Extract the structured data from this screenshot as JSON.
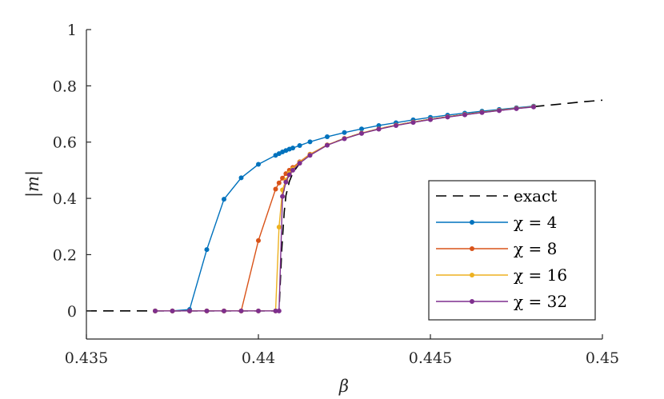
{
  "chart_data": {
    "type": "line",
    "xlabel": "β",
    "ylabel": "|m|",
    "xlim": [
      0.435,
      0.45
    ],
    "ylim": [
      -0.1,
      1.0
    ],
    "xticks": [
      0.435,
      0.44,
      0.445,
      0.45
    ],
    "xtick_labels": [
      "0.435",
      "0.44",
      "0.445",
      "0.45"
    ],
    "yticks": [
      0,
      0.2,
      0.4,
      0.6,
      0.8,
      1
    ],
    "ytick_labels": [
      "0",
      "0.2",
      "0.4",
      "0.6",
      "0.8",
      "1"
    ],
    "grid": false,
    "legend_position": "bottom-right",
    "series": [
      {
        "name": "exact",
        "legend_label": "exact",
        "color": "#000000",
        "style": "dashed",
        "markers": false,
        "x": [
          0.435,
          0.4406,
          0.44068,
          0.44075,
          0.4408,
          0.4409,
          0.441,
          0.4412,
          0.4415,
          0.442,
          0.4425,
          0.443,
          0.4435,
          0.444,
          0.4445,
          0.445,
          0.4455,
          0.446,
          0.4465,
          0.447,
          0.4475,
          0.448,
          0.4485,
          0.449,
          0.4495,
          0.45
        ],
        "y": [
          0,
          0,
          0.22,
          0.35,
          0.41,
          0.46,
          0.49,
          0.525,
          0.555,
          0.59,
          0.613,
          0.632,
          0.647,
          0.66,
          0.671,
          0.681,
          0.69,
          0.698,
          0.706,
          0.713,
          0.72,
          0.726,
          0.732,
          0.738,
          0.744,
          0.749
        ]
      },
      {
        "name": "χ = 4",
        "legend_label": "χ = 4",
        "color": "#0072BD",
        "style": "solid",
        "markers": true,
        "x": [
          0.437,
          0.4375,
          0.438,
          0.4385,
          0.439,
          0.4395,
          0.44,
          0.4405,
          0.4406,
          0.4407,
          0.4408,
          0.4409,
          0.441,
          0.4412,
          0.4415,
          0.442,
          0.4425,
          0.443,
          0.4435,
          0.444,
          0.4445,
          0.445,
          0.4455,
          0.446,
          0.4465,
          0.447,
          0.4475,
          0.448
        ],
        "y": [
          0,
          0,
          0.005,
          0.218,
          0.397,
          0.473,
          0.521,
          0.553,
          0.559,
          0.565,
          0.57,
          0.575,
          0.579,
          0.588,
          0.601,
          0.619,
          0.634,
          0.647,
          0.659,
          0.669,
          0.679,
          0.688,
          0.696,
          0.703,
          0.71,
          0.716,
          0.722,
          0.728
        ]
      },
      {
        "name": "χ = 8",
        "legend_label": "χ = 8",
        "color": "#D95319",
        "style": "solid",
        "markers": true,
        "x": [
          0.437,
          0.4375,
          0.438,
          0.4385,
          0.439,
          0.4395,
          0.44,
          0.4405,
          0.4406,
          0.4407,
          0.4408,
          0.4409,
          0.441,
          0.4412,
          0.4415,
          0.442,
          0.4425,
          0.443,
          0.4435,
          0.444,
          0.4445,
          0.445,
          0.4455,
          0.446,
          0.4465,
          0.447,
          0.4475,
          0.448
        ],
        "y": [
          0,
          0,
          0,
          0,
          0,
          0,
          0.25,
          0.433,
          0.455,
          0.472,
          0.488,
          0.5,
          0.51,
          0.53,
          0.557,
          0.59,
          0.613,
          0.632,
          0.647,
          0.66,
          0.671,
          0.681,
          0.69,
          0.698,
          0.706,
          0.713,
          0.72,
          0.726
        ]
      },
      {
        "name": "χ = 16",
        "legend_label": "χ = 16",
        "color": "#EDB120",
        "style": "solid",
        "markers": true,
        "x": [
          0.437,
          0.4375,
          0.438,
          0.4385,
          0.439,
          0.4395,
          0.44,
          0.4405,
          0.4406,
          0.4407,
          0.4408,
          0.4409,
          0.441,
          0.4412,
          0.4415,
          0.442,
          0.4425,
          0.443,
          0.4435,
          0.444,
          0.4445,
          0.445,
          0.4455,
          0.446,
          0.4465,
          0.447,
          0.4475,
          0.448
        ],
        "y": [
          0,
          0,
          0,
          0,
          0,
          0,
          0,
          0,
          0.298,
          0.43,
          0.465,
          0.49,
          0.505,
          0.528,
          0.556,
          0.59,
          0.613,
          0.632,
          0.647,
          0.66,
          0.671,
          0.681,
          0.69,
          0.698,
          0.706,
          0.713,
          0.72,
          0.726
        ]
      },
      {
        "name": "χ = 32",
        "legend_label": "χ = 32",
        "color": "#7E2F8E",
        "style": "solid",
        "markers": true,
        "x": [
          0.437,
          0.4375,
          0.438,
          0.4385,
          0.439,
          0.4395,
          0.44,
          0.4405,
          0.4406,
          0.4407,
          0.4408,
          0.4409,
          0.441,
          0.4412,
          0.4415,
          0.442,
          0.4425,
          0.443,
          0.4435,
          0.444,
          0.4445,
          0.445,
          0.4455,
          0.446,
          0.4465,
          0.447,
          0.4475,
          0.448
        ],
        "y": [
          0,
          0,
          0,
          0,
          0,
          0,
          0,
          0,
          0,
          0.407,
          0.458,
          0.484,
          0.5,
          0.525,
          0.553,
          0.589,
          0.612,
          0.631,
          0.646,
          0.659,
          0.67,
          0.68,
          0.689,
          0.697,
          0.705,
          0.712,
          0.719,
          0.725
        ]
      }
    ]
  }
}
